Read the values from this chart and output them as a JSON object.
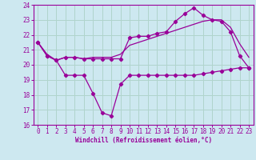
{
  "xlabel": "Windchill (Refroidissement éolien,°C)",
  "background_color": "#cde8f0",
  "grid_color": "#b0d4cc",
  "line_color": "#990099",
  "xlim": [
    -0.5,
    23.5
  ],
  "ylim": [
    16,
    24
  ],
  "yticks": [
    16,
    17,
    18,
    19,
    20,
    21,
    22,
    23,
    24
  ],
  "xticks": [
    0,
    1,
    2,
    3,
    4,
    5,
    6,
    7,
    8,
    9,
    10,
    11,
    12,
    13,
    14,
    15,
    16,
    17,
    18,
    19,
    20,
    21,
    22,
    23
  ],
  "line1_x": [
    0,
    1,
    2,
    3,
    4,
    5,
    6,
    7,
    8,
    9,
    10,
    11,
    12,
    13,
    14,
    15,
    16,
    17,
    18,
    19,
    20,
    21,
    22,
    23
  ],
  "line1_y": [
    21.5,
    20.6,
    20.3,
    20.5,
    20.5,
    20.4,
    20.4,
    20.4,
    20.4,
    20.4,
    21.8,
    21.9,
    21.9,
    22.1,
    22.2,
    22.9,
    23.4,
    23.8,
    23.3,
    23.0,
    22.9,
    22.2,
    20.6,
    19.8
  ],
  "line2_x": [
    0,
    1,
    2,
    3,
    4,
    5,
    6,
    7,
    8,
    9,
    10,
    11,
    12,
    13,
    14,
    15,
    16,
    17,
    18,
    19,
    20,
    21,
    22,
    23
  ],
  "line2_y": [
    21.5,
    20.7,
    20.3,
    20.5,
    20.5,
    20.4,
    20.5,
    20.5,
    20.5,
    20.7,
    21.3,
    21.5,
    21.7,
    21.9,
    22.1,
    22.3,
    22.5,
    22.7,
    22.9,
    23.0,
    23.0,
    22.5,
    21.4,
    20.5
  ],
  "line3_x": [
    0,
    1,
    2,
    3,
    4,
    5,
    6,
    7,
    8,
    9,
    10,
    11,
    12,
    13,
    14,
    15,
    16,
    17,
    18,
    19,
    20,
    21,
    22,
    23
  ],
  "line3_y": [
    21.5,
    20.6,
    20.3,
    19.3,
    19.3,
    19.3,
    18.1,
    16.8,
    16.6,
    18.7,
    19.3,
    19.3,
    19.3,
    19.3,
    19.3,
    19.3,
    19.3,
    19.3,
    19.4,
    19.5,
    19.6,
    19.7,
    19.8,
    19.8
  ],
  "xlabel_fontsize": 5.5,
  "tick_fontsize": 5.5
}
